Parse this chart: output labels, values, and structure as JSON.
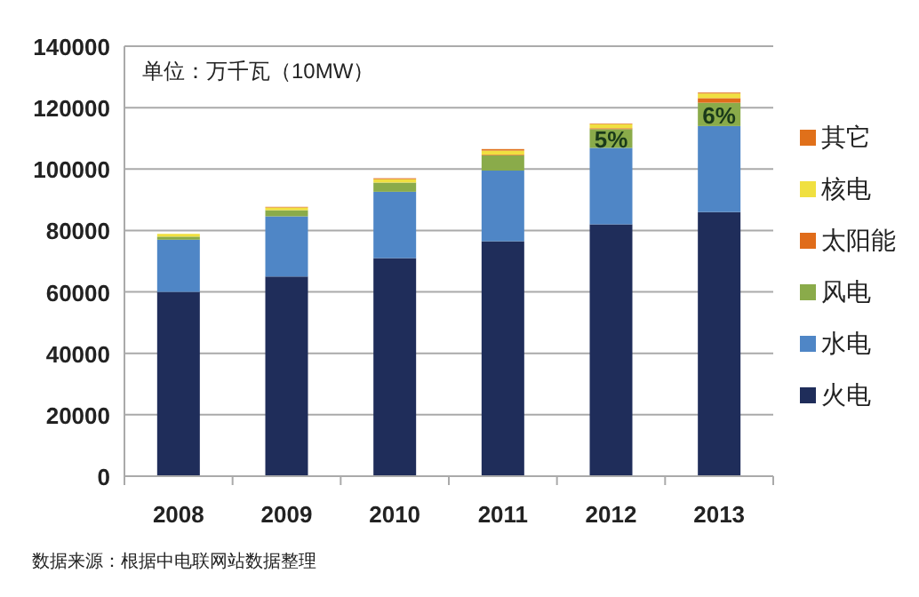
{
  "chart_data": {
    "type": "bar",
    "stacked": true,
    "categories": [
      "2008",
      "2009",
      "2010",
      "2011",
      "2012",
      "2013"
    ],
    "series": [
      {
        "name": "火电",
        "color": "#1f2d5a",
        "values": [
          60000,
          65000,
          71000,
          76500,
          82000,
          86000
        ]
      },
      {
        "name": "水电",
        "color": "#4f86c6",
        "values": [
          17000,
          19600,
          21600,
          23000,
          24900,
          28000
        ]
      },
      {
        "name": "风电",
        "color": "#8aab4a",
        "values": [
          1000,
          2000,
          3000,
          5000,
          6100,
          7600
        ]
      },
      {
        "name": "太阳能",
        "color": "#e06c1a",
        "values": [
          0,
          0,
          0,
          200,
          300,
          1500
        ]
      },
      {
        "name": "核电",
        "color": "#f0e040",
        "values": [
          900,
          900,
          1100,
          1300,
          1300,
          1500
        ]
      },
      {
        "name": "其它",
        "color": "#e0701a",
        "values": [
          0,
          200,
          300,
          500,
          200,
          300
        ]
      }
    ],
    "ylim": [
      0,
      140000
    ],
    "yticks": [
      0,
      20000,
      40000,
      60000,
      80000,
      100000,
      120000,
      140000
    ],
    "grid": "y",
    "legend": "right",
    "annotations": [
      "单位：万千瓦（10MW）",
      "5%",
      "6%",
      "数据来源：根据中电联网站数据整理"
    ]
  }
}
